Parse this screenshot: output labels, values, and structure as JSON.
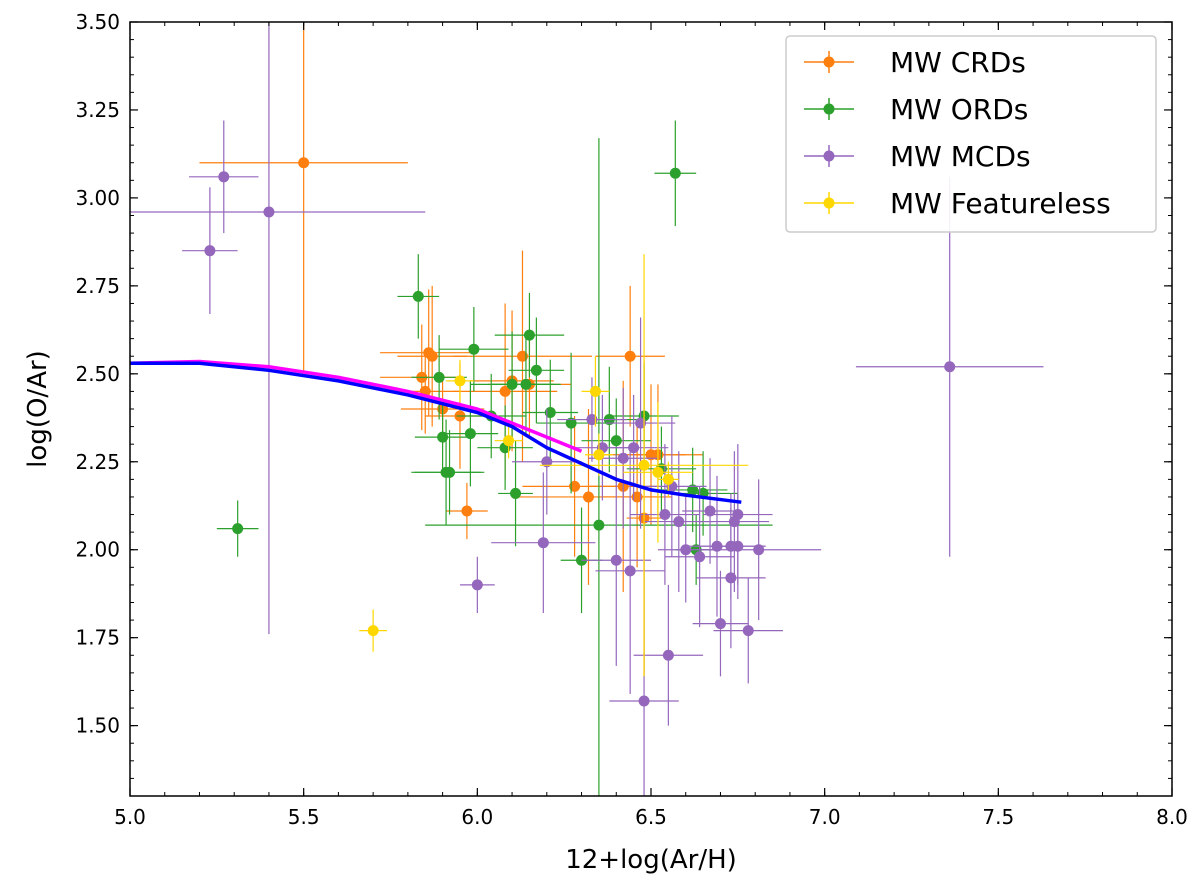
{
  "chart_data": {
    "type": "scatter",
    "xlabel": "12+log(Ar/H)",
    "ylabel": "log(O/Ar)",
    "xlim": [
      5.0,
      8.0
    ],
    "ylim": [
      1.3,
      3.5
    ],
    "xticks": [
      "5.0",
      "5.5",
      "6.0",
      "6.5",
      "7.0",
      "7.5",
      "8.0"
    ],
    "yticks": [
      "1.50",
      "1.75",
      "2.00",
      "2.25",
      "2.50",
      "2.75",
      "3.00",
      "3.25",
      "3.50"
    ],
    "xtick_values": [
      5.0,
      5.5,
      6.0,
      6.5,
      7.0,
      7.5,
      8.0
    ],
    "ytick_values": [
      1.5,
      1.75,
      2.0,
      2.25,
      2.5,
      2.75,
      3.0,
      3.25,
      3.5
    ],
    "legend_position": "top-right",
    "series": [
      {
        "name": "MW CRDs",
        "color": "#ff7f0e",
        "points": [
          [
            5.5,
            3.1,
            0.3,
            0.6
          ],
          [
            5.84,
            2.49,
            0.12,
            0.15
          ],
          [
            5.86,
            2.56,
            0.14,
            0.18
          ],
          [
            5.87,
            2.55,
            0.1,
            0.2
          ],
          [
            5.85,
            2.45,
            0.1,
            0.12
          ],
          [
            5.9,
            2.4,
            0.12,
            0.1
          ],
          [
            5.95,
            2.38,
            0.1,
            0.15
          ],
          [
            5.97,
            2.11,
            0.06,
            0.08
          ],
          [
            6.08,
            2.45,
            0.15,
            0.25
          ],
          [
            6.1,
            2.48,
            0.12,
            0.2
          ],
          [
            6.13,
            2.55,
            0.2,
            0.3
          ],
          [
            6.15,
            2.47,
            0.12,
            0.15
          ],
          [
            6.28,
            2.18,
            0.15,
            0.2
          ],
          [
            6.32,
            2.15,
            0.2,
            0.25
          ],
          [
            6.42,
            2.18,
            0.1,
            0.3
          ],
          [
            6.44,
            2.55,
            0.1,
            0.2
          ],
          [
            6.46,
            2.15,
            0.1,
            0.2
          ],
          [
            6.48,
            2.09,
            0.05,
            0.45
          ],
          [
            6.52,
            2.27,
            0.08,
            0.2
          ],
          [
            6.5,
            2.27,
            0.15,
            0.2
          ]
        ]
      },
      {
        "name": "MW ORDs",
        "color": "#2ca02c",
        "points": [
          [
            5.31,
            2.06,
            0.06,
            0.08
          ],
          [
            5.83,
            2.72,
            0.06,
            0.12
          ],
          [
            5.89,
            2.49,
            0.08,
            0.12
          ],
          [
            5.91,
            2.22,
            0.1,
            0.15
          ],
          [
            5.92,
            2.22,
            0.1,
            0.12
          ],
          [
            5.9,
            2.32,
            0.08,
            0.1
          ],
          [
            5.99,
            2.57,
            0.1,
            0.12
          ],
          [
            5.98,
            2.33,
            0.08,
            0.15
          ],
          [
            6.04,
            2.38,
            0.1,
            0.12
          ],
          [
            6.08,
            2.29,
            0.08,
            0.12
          ],
          [
            6.1,
            2.47,
            0.12,
            0.15
          ],
          [
            6.11,
            2.16,
            0.05,
            0.15
          ],
          [
            6.14,
            2.47,
            0.1,
            0.15
          ],
          [
            6.15,
            2.61,
            0.1,
            0.12
          ],
          [
            6.17,
            2.51,
            0.08,
            0.15
          ],
          [
            6.21,
            2.39,
            0.08,
            0.15
          ],
          [
            6.27,
            2.36,
            0.1,
            0.2
          ],
          [
            6.3,
            1.97,
            0.06,
            0.15
          ],
          [
            6.35,
            2.07,
            0.5,
            1.1
          ],
          [
            6.38,
            2.37,
            0.1,
            0.15
          ],
          [
            6.4,
            2.31,
            0.1,
            0.12
          ],
          [
            6.48,
            2.38,
            0.1,
            0.15
          ],
          [
            6.53,
            2.23,
            0.1,
            0.12
          ],
          [
            6.57,
            3.07,
            0.06,
            0.15
          ],
          [
            6.62,
            2.17,
            0.1,
            0.12
          ],
          [
            6.65,
            2.16,
            0.1,
            0.12
          ],
          [
            6.63,
            2.0,
            0.06,
            0.1
          ]
        ]
      },
      {
        "name": "MW MCDs",
        "color": "#9467bd",
        "points": [
          [
            5.23,
            2.85,
            0.08,
            0.18
          ],
          [
            5.27,
            3.06,
            0.1,
            0.16
          ],
          [
            5.4,
            2.96,
            0.45,
            1.2
          ],
          [
            6.0,
            1.9,
            0.05,
            0.08
          ],
          [
            6.19,
            2.02,
            0.15,
            0.2
          ],
          [
            6.2,
            2.25,
            0.1,
            0.15
          ],
          [
            6.33,
            2.37,
            0.1,
            0.12
          ],
          [
            6.36,
            2.29,
            0.08,
            0.15
          ],
          [
            6.4,
            1.97,
            0.1,
            0.3
          ],
          [
            6.42,
            2.26,
            0.1,
            0.2
          ],
          [
            6.45,
            2.29,
            0.1,
            0.15
          ],
          [
            6.44,
            1.94,
            0.1,
            0.35
          ],
          [
            6.47,
            2.36,
            0.1,
            0.3
          ],
          [
            6.48,
            1.57,
            0.1,
            0.5
          ],
          [
            6.55,
            1.7,
            0.1,
            0.2
          ],
          [
            6.54,
            2.1,
            0.1,
            0.2
          ],
          [
            6.56,
            2.18,
            0.1,
            0.2
          ],
          [
            6.58,
            2.08,
            0.1,
            0.2
          ],
          [
            6.6,
            2.0,
            0.08,
            0.15
          ],
          [
            6.64,
            1.98,
            0.1,
            0.2
          ],
          [
            6.67,
            2.11,
            0.08,
            0.15
          ],
          [
            6.69,
            2.01,
            0.08,
            0.2
          ],
          [
            6.7,
            1.79,
            0.08,
            0.15
          ],
          [
            6.73,
            2.01,
            0.1,
            0.15
          ],
          [
            6.73,
            1.92,
            0.1,
            0.2
          ],
          [
            6.74,
            2.08,
            0.1,
            0.2
          ],
          [
            6.75,
            2.1,
            0.1,
            0.2
          ],
          [
            6.75,
            2.01,
            0.08,
            0.15
          ],
          [
            6.78,
            1.77,
            0.1,
            0.15
          ],
          [
            6.81,
            2.0,
            0.18,
            0.2
          ],
          [
            7.36,
            2.52,
            0.27,
            0.54
          ]
        ]
      },
      {
        "name": "MW Featureless",
        "color": "#ffd700",
        "points": [
          [
            5.7,
            1.77,
            0.04,
            0.06
          ],
          [
            5.95,
            2.48,
            0.04,
            0.06
          ],
          [
            6.09,
            2.31,
            0.04,
            0.05
          ],
          [
            6.34,
            2.45,
            0.04,
            0.1
          ],
          [
            6.35,
            2.27,
            0.04,
            0.06
          ],
          [
            6.48,
            2.24,
            0.3,
            0.6
          ],
          [
            6.52,
            2.22,
            0.1,
            0.2
          ],
          [
            6.55,
            2.2,
            0.03,
            0.05
          ]
        ]
      }
    ],
    "curves": [
      {
        "color": "#ff00ff",
        "x": [
          5.0,
          5.2,
          5.4,
          5.6,
          5.8,
          6.0,
          6.1,
          6.2,
          6.3
        ],
        "y": [
          2.53,
          2.535,
          2.52,
          2.49,
          2.45,
          2.4,
          2.36,
          2.32,
          2.28
        ]
      },
      {
        "color": "#0000ff",
        "x": [
          5.0,
          5.2,
          5.4,
          5.6,
          5.8,
          6.0,
          6.1,
          6.2,
          6.3,
          6.4,
          6.5,
          6.6,
          6.76
        ],
        "y": [
          2.53,
          2.53,
          2.51,
          2.48,
          2.44,
          2.39,
          2.35,
          2.29,
          2.245,
          2.2,
          2.17,
          2.155,
          2.135
        ]
      }
    ]
  }
}
